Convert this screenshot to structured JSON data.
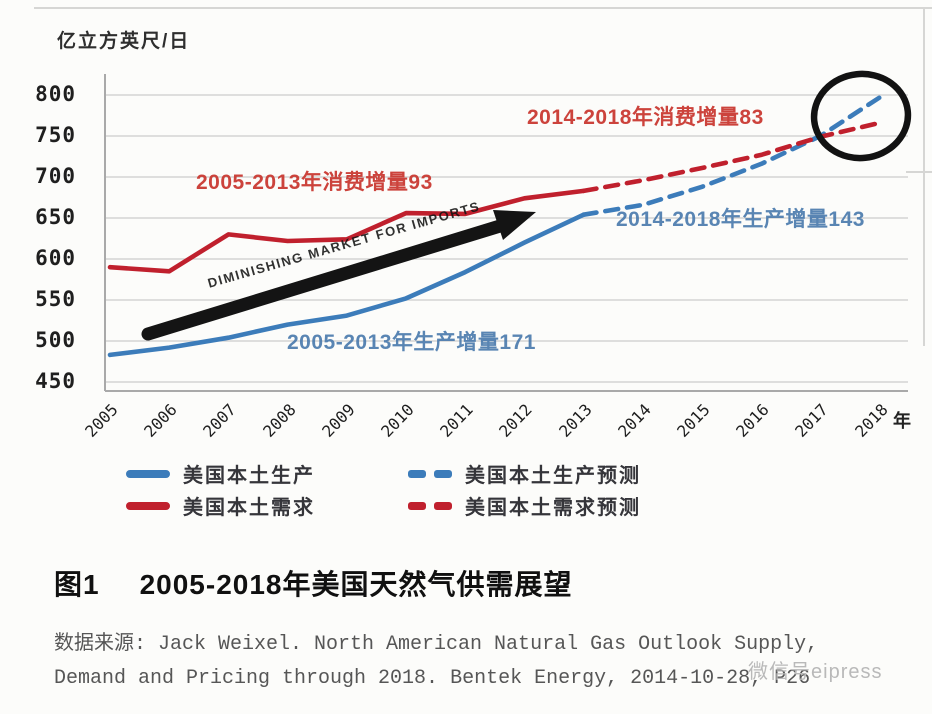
{
  "figure": {
    "caption_label": "图1",
    "caption_title": "2005-2018年美国天然气供需展望",
    "source_line1": "数据来源: Jack Weixel. North American Natural Gas Outlook Supply,",
    "source_line2": "Demand and Pricing through 2018. Bentek Energy, 2014-10-28, P26",
    "watermark": "微信号eipress"
  },
  "chart_data": {
    "type": "line",
    "title": "2005-2018年美国天然气供需展望",
    "ylabel": "亿立方英尺/日",
    "xlabel": "年",
    "ylim": [
      440,
      810
    ],
    "yticks": [
      800,
      750,
      700,
      650,
      600,
      550,
      500,
      450
    ],
    "x": [
      2005,
      2006,
      2007,
      2008,
      2009,
      2010,
      2011,
      2012,
      2013,
      2014,
      2015,
      2016,
      2017,
      2018
    ],
    "grid": true,
    "legend_position": "bottom",
    "series": [
      {
        "id": "production",
        "name": "美国本土生产",
        "style": "solid",
        "color": "#3c7cba",
        "x": [
          2005,
          2006,
          2007,
          2008,
          2009,
          2010,
          2011,
          2012,
          2013
        ],
        "values": [
          483,
          492,
          504,
          520,
          531,
          552,
          584,
          620,
          654
        ]
      },
      {
        "id": "demand",
        "name": "美国本土需求",
        "style": "solid",
        "color": "#c0202d",
        "x": [
          2005,
          2006,
          2007,
          2008,
          2009,
          2010,
          2011,
          2012,
          2013
        ],
        "values": [
          590,
          585,
          630,
          622,
          624,
          656,
          655,
          674,
          683
        ]
      },
      {
        "id": "production-forecast",
        "name": "美国本土生产预测",
        "style": "dashed",
        "color": "#3c7cba",
        "x": [
          2013,
          2014,
          2015,
          2016,
          2017,
          2018
        ],
        "values": [
          654,
          666,
          688,
          716,
          750,
          797
        ]
      },
      {
        "id": "demand-forecast",
        "name": "美国本土需求预测",
        "style": "dashed",
        "color": "#c0202d",
        "x": [
          2013,
          2014,
          2015,
          2016,
          2017,
          2018
        ],
        "values": [
          683,
          696,
          711,
          727,
          749,
          766
        ]
      }
    ],
    "legend": [
      {
        "label": "美国本土生产",
        "color": "#3c7cba",
        "style": "solid"
      },
      {
        "label": "美国本土需求",
        "color": "#c0202d",
        "style": "solid"
      },
      {
        "label": "美国本土生产预测",
        "color": "#3c7cba",
        "style": "dashed"
      },
      {
        "label": "美国本土需求预测",
        "color": "#c0202d",
        "style": "dashed"
      }
    ],
    "annotations": [
      {
        "id": "consumption-growth-forecast",
        "text": "2014-2018年消费增量83",
        "color": "#c9362e"
      },
      {
        "id": "consumption-growth-historical",
        "text": "2005-2013年消费增量93",
        "color": "#c9362e"
      },
      {
        "id": "production-growth-forecast",
        "text": "2014-2018年生产增量143",
        "color": "#4d7cae"
      },
      {
        "id": "production-growth-historical",
        "text": "2005-2013年生产增量171",
        "color": "#4d7cae"
      },
      {
        "id": "arrow-label",
        "type": "arrow",
        "text": "DIMINISHING MARKET FOR IMPORTS"
      },
      {
        "id": "highlight-circle",
        "type": "circle",
        "text": "",
        "around_year": 2018
      }
    ]
  }
}
